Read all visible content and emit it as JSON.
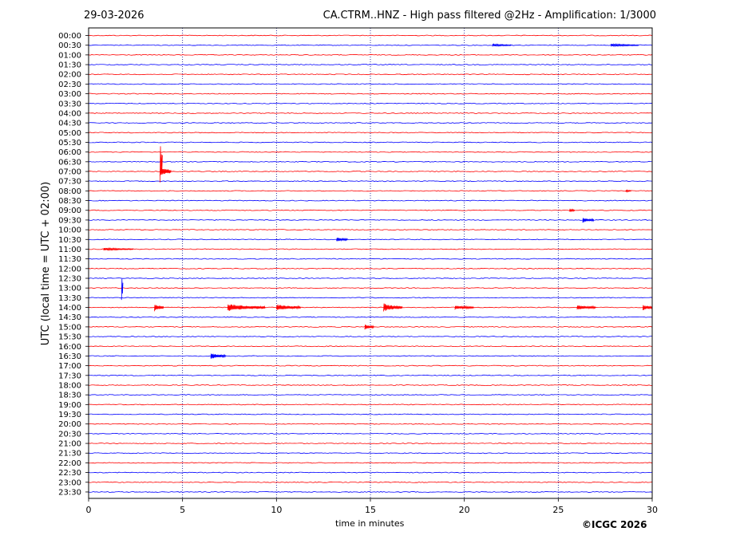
{
  "header": {
    "date": "29-03-2026",
    "title": "CA.CTRM..HNZ - High pass filtered @2Hz - Amplification: 1/3000"
  },
  "copyright": "©ICGC 2026",
  "colors": {
    "red": "#ff0000",
    "blue": "#0000ff",
    "grid": "#00008b",
    "frame": "#000000"
  },
  "chart_data": {
    "type": "line",
    "xlabel": "time in minutes",
    "ylabel": "UTC (local time = UTC + 02:00)",
    "xlim": [
      0,
      30
    ],
    "x_ticks": [
      0,
      5,
      10,
      15,
      20,
      25,
      30
    ],
    "x_tick_labels": [
      "0",
      "5",
      "10",
      "15",
      "20",
      "25",
      "30"
    ],
    "x_grid": [
      5,
      10,
      15,
      20,
      25
    ],
    "grid": true,
    "traces": [
      {
        "label": "00:00",
        "color": "red"
      },
      {
        "label": "00:30",
        "color": "blue"
      },
      {
        "label": "01:00",
        "color": "red"
      },
      {
        "label": "01:30",
        "color": "blue"
      },
      {
        "label": "02:00",
        "color": "red"
      },
      {
        "label": "02:30",
        "color": "blue"
      },
      {
        "label": "03:00",
        "color": "red"
      },
      {
        "label": "03:30",
        "color": "blue"
      },
      {
        "label": "04:00",
        "color": "red"
      },
      {
        "label": "04:30",
        "color": "blue"
      },
      {
        "label": "05:00",
        "color": "red"
      },
      {
        "label": "05:30",
        "color": "blue"
      },
      {
        "label": "06:00",
        "color": "red"
      },
      {
        "label": "06:30",
        "color": "blue"
      },
      {
        "label": "07:00",
        "color": "red"
      },
      {
        "label": "07:30",
        "color": "blue"
      },
      {
        "label": "08:00",
        "color": "red"
      },
      {
        "label": "08:30",
        "color": "blue"
      },
      {
        "label": "09:00",
        "color": "red"
      },
      {
        "label": "09:30",
        "color": "blue"
      },
      {
        "label": "10:00",
        "color": "red"
      },
      {
        "label": "10:30",
        "color": "blue"
      },
      {
        "label": "11:00",
        "color": "red"
      },
      {
        "label": "11:30",
        "color": "blue"
      },
      {
        "label": "12:00",
        "color": "red"
      },
      {
        "label": "12:30",
        "color": "blue"
      },
      {
        "label": "13:00",
        "color": "red"
      },
      {
        "label": "13:30",
        "color": "blue"
      },
      {
        "label": "14:00",
        "color": "red"
      },
      {
        "label": "14:30",
        "color": "blue"
      },
      {
        "label": "15:00",
        "color": "red"
      },
      {
        "label": "15:30",
        "color": "blue"
      },
      {
        "label": "16:00",
        "color": "red"
      },
      {
        "label": "16:30",
        "color": "blue"
      },
      {
        "label": "17:00",
        "color": "red"
      },
      {
        "label": "17:30",
        "color": "blue"
      },
      {
        "label": "18:00",
        "color": "red"
      },
      {
        "label": "18:30",
        "color": "blue"
      },
      {
        "label": "19:00",
        "color": "red"
      },
      {
        "label": "19:30",
        "color": "blue"
      },
      {
        "label": "20:00",
        "color": "red"
      },
      {
        "label": "20:30",
        "color": "blue"
      },
      {
        "label": "21:00",
        "color": "red"
      },
      {
        "label": "21:30",
        "color": "blue"
      },
      {
        "label": "22:00",
        "color": "red"
      },
      {
        "label": "22:30",
        "color": "blue"
      },
      {
        "label": "23:00",
        "color": "red"
      },
      {
        "label": "23:30",
        "color": "blue"
      }
    ],
    "events": [
      {
        "trace": "06:30",
        "start_min": 3.8,
        "duration_min": 0.15,
        "amplitude": 5.0,
        "color": "red"
      },
      {
        "trace": "07:00",
        "start_min": 3.8,
        "duration_min": 0.6,
        "amplitude": 1.2,
        "color": "red"
      },
      {
        "trace": "13:00",
        "start_min": 1.75,
        "duration_min": 0.1,
        "amplitude": 4.0,
        "color": "blue"
      },
      {
        "trace": "14:00",
        "start_min": 3.5,
        "duration_min": 0.5,
        "amplitude": 0.9,
        "color": "red"
      },
      {
        "trace": "14:00",
        "start_min": 7.4,
        "duration_min": 2.0,
        "amplitude": 0.8,
        "color": "red"
      },
      {
        "trace": "14:00",
        "start_min": 10.0,
        "duration_min": 1.3,
        "amplitude": 0.7,
        "color": "red"
      },
      {
        "trace": "14:00",
        "start_min": 15.7,
        "duration_min": 1.0,
        "amplitude": 0.9,
        "color": "red"
      },
      {
        "trace": "14:00",
        "start_min": 19.5,
        "duration_min": 1.0,
        "amplitude": 0.5,
        "color": "red"
      },
      {
        "trace": "14:00",
        "start_min": 26.0,
        "duration_min": 1.0,
        "amplitude": 0.6,
        "color": "red"
      },
      {
        "trace": "14:00",
        "start_min": 29.5,
        "duration_min": 0.5,
        "amplitude": 0.7,
        "color": "red"
      },
      {
        "trace": "10:30",
        "start_min": 13.2,
        "duration_min": 0.6,
        "amplitude": 0.5,
        "color": "blue"
      },
      {
        "trace": "16:30",
        "start_min": 6.5,
        "duration_min": 0.8,
        "amplitude": 0.7,
        "color": "blue"
      },
      {
        "trace": "09:30",
        "start_min": 26.3,
        "duration_min": 0.6,
        "amplitude": 0.6,
        "color": "blue"
      },
      {
        "trace": "15:00",
        "start_min": 14.7,
        "duration_min": 0.5,
        "amplitude": 0.6,
        "color": "red"
      },
      {
        "trace": "11:00",
        "start_min": 0.8,
        "duration_min": 1.6,
        "amplitude": 0.3,
        "color": "red"
      },
      {
        "trace": "00:30",
        "start_min": 21.5,
        "duration_min": 1.0,
        "amplitude": 0.3,
        "color": "blue"
      },
      {
        "trace": "00:30",
        "start_min": 27.8,
        "duration_min": 1.5,
        "amplitude": 0.3,
        "color": "blue"
      },
      {
        "trace": "09:00",
        "start_min": 25.6,
        "duration_min": 0.3,
        "amplitude": 0.4,
        "color": "red"
      },
      {
        "trace": "08:00",
        "start_min": 28.6,
        "duration_min": 0.3,
        "amplitude": 0.3,
        "color": "red"
      }
    ]
  }
}
